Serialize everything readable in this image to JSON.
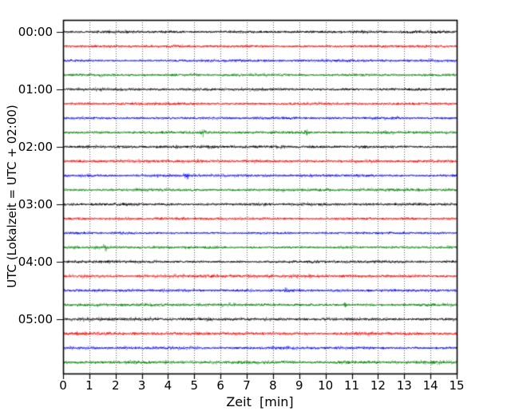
{
  "chart_data": {
    "type": "line",
    "subtype": "helicorder-seismogram-drum-plot",
    "title": "",
    "xlabel": "Zeit  [min]",
    "ylabel": "UTC (Lokalzeit = UTC + 02:00)",
    "xlim": [
      0,
      15
    ],
    "x_ticks": [
      0,
      1,
      2,
      3,
      4,
      5,
      6,
      7,
      8,
      9,
      10,
      11,
      12,
      13,
      14,
      15
    ],
    "y_tick_labels": [
      "00:00",
      "01:00",
      "02:00",
      "03:00",
      "04:00",
      "05:00"
    ],
    "minutes_per_row": 15,
    "rows_per_hour": 4,
    "grid": {
      "vertical_dotted": true,
      "horizontal": false,
      "color": "#3c3c3c"
    },
    "axis_color": "#000000",
    "background_color": "#ffffff",
    "color_cycle": [
      "#000000",
      "#ff0000",
      "#0000ff",
      "#008000"
    ],
    "traces": [
      {
        "start": "00:00",
        "color": "#000000",
        "amp": 2.0,
        "events": []
      },
      {
        "start": "00:15",
        "color": "#ff0000",
        "amp": 2.0,
        "events": []
      },
      {
        "start": "00:30",
        "color": "#0000ff",
        "amp": 1.8,
        "events": []
      },
      {
        "start": "00:45",
        "color": "#008000",
        "amp": 1.9,
        "events": []
      },
      {
        "start": "01:00",
        "color": "#000000",
        "amp": 2.0,
        "events": []
      },
      {
        "start": "01:15",
        "color": "#ff0000",
        "amp": 1.9,
        "events": []
      },
      {
        "start": "01:30",
        "color": "#0000ff",
        "amp": 1.8,
        "events": []
      },
      {
        "start": "01:45",
        "color": "#008000",
        "amp": 1.9,
        "events": [
          {
            "t": 5.35,
            "gain": 2.0,
            "sigma": 0.07
          },
          {
            "t": 9.3,
            "gain": 1.5,
            "sigma": 0.06
          }
        ]
      },
      {
        "start": "02:00",
        "color": "#000000",
        "amp": 2.0,
        "events": []
      },
      {
        "start": "02:15",
        "color": "#ff0000",
        "amp": 2.0,
        "events": []
      },
      {
        "start": "02:30",
        "color": "#0000ff",
        "amp": 1.8,
        "events": [
          {
            "t": 4.7,
            "gain": 1.2,
            "sigma": 0.06
          }
        ]
      },
      {
        "start": "02:45",
        "color": "#008000",
        "amp": 1.9,
        "events": []
      },
      {
        "start": "03:00",
        "color": "#000000",
        "amp": 1.9,
        "events": []
      },
      {
        "start": "03:15",
        "color": "#ff0000",
        "amp": 1.9,
        "events": []
      },
      {
        "start": "03:30",
        "color": "#0000ff",
        "amp": 1.8,
        "events": []
      },
      {
        "start": "03:45",
        "color": "#008000",
        "amp": 1.9,
        "events": [
          {
            "t": 1.62,
            "gain": 1.4,
            "sigma": 0.06
          }
        ]
      },
      {
        "start": "04:00",
        "color": "#000000",
        "amp": 2.0,
        "events": []
      },
      {
        "start": "04:15",
        "color": "#ff0000",
        "amp": 2.1,
        "events": []
      },
      {
        "start": "04:30",
        "color": "#0000ff",
        "amp": 1.9,
        "events": [
          {
            "t": 7.1,
            "gain": 1.0,
            "sigma": 0.06
          },
          {
            "t": 8.5,
            "gain": 1.0,
            "sigma": 0.08
          }
        ]
      },
      {
        "start": "04:45",
        "color": "#008000",
        "amp": 2.0,
        "events": [
          {
            "t": 10.75,
            "gain": 1.3,
            "sigma": 0.05
          }
        ]
      },
      {
        "start": "05:00",
        "color": "#000000",
        "amp": 2.0,
        "events": []
      },
      {
        "start": "05:15",
        "color": "#ff0000",
        "amp": 2.1,
        "events": []
      },
      {
        "start": "05:30",
        "color": "#0000ff",
        "amp": 2.0,
        "events": [
          {
            "t": 2.4,
            "gain": 1.0,
            "sigma": 0.06
          }
        ]
      },
      {
        "start": "05:45",
        "color": "#008000",
        "amp": 2.2,
        "events": []
      }
    ]
  }
}
